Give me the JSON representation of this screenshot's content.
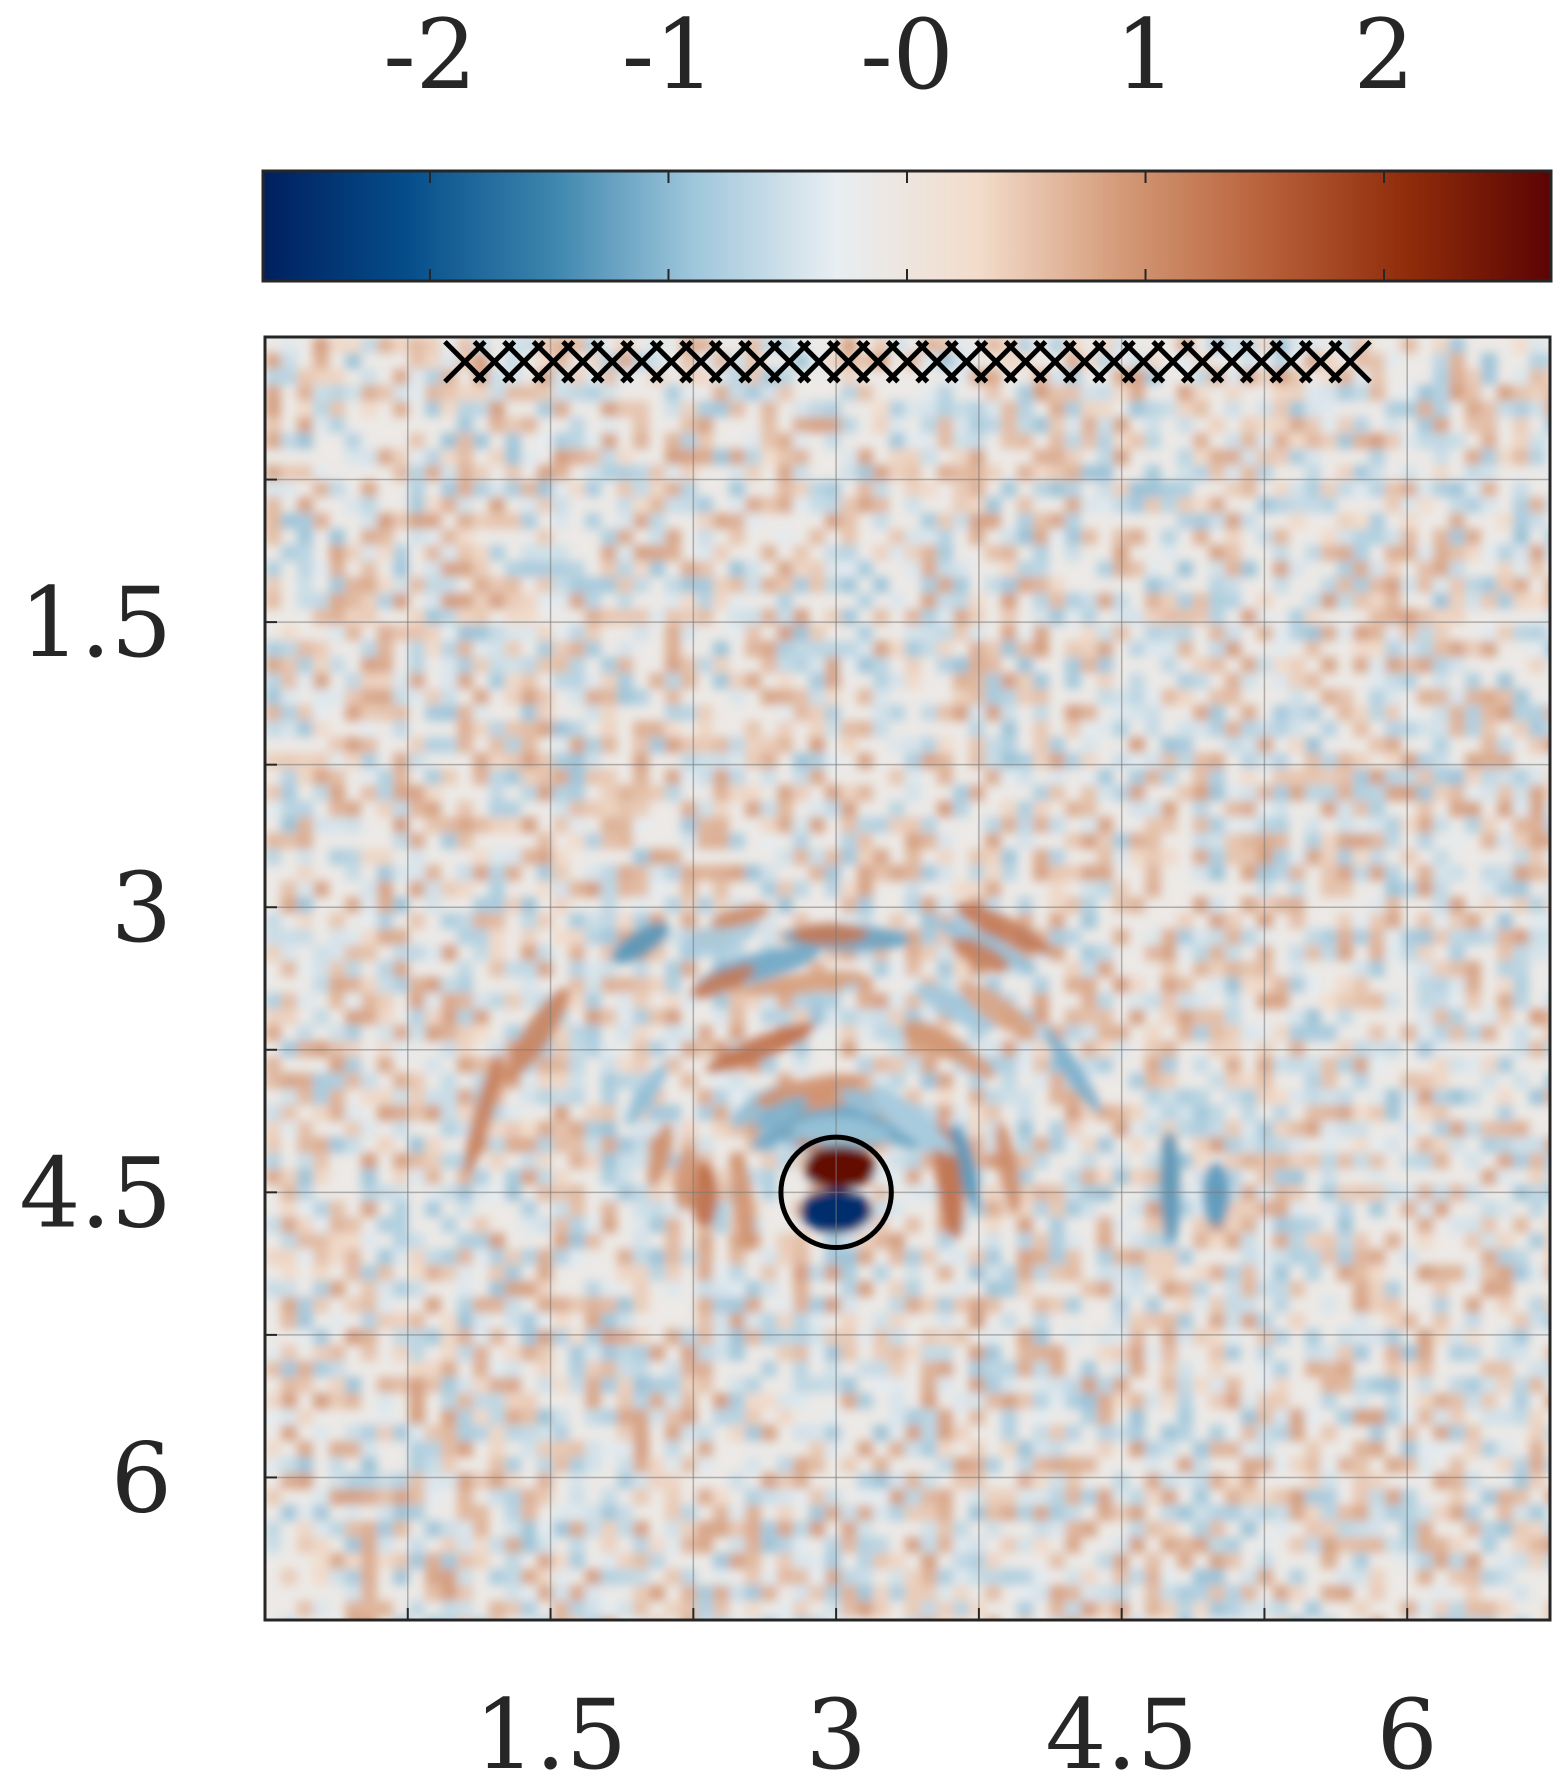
{
  "chart_data": {
    "type": "heatmap",
    "title": "",
    "xlabel": "",
    "ylabel": "",
    "xlim": [
      0,
      6.75
    ],
    "ylim": [
      0,
      6.75
    ],
    "y_reversed": true,
    "grid": true,
    "grid_step": 0.75,
    "x_tick_labels": [
      {
        "value": 1.5,
        "label": "1.5"
      },
      {
        "value": 3,
        "label": "3"
      },
      {
        "value": 4.5,
        "label": "4.5"
      },
      {
        "value": 6,
        "label": "6"
      }
    ],
    "y_tick_labels": [
      {
        "value": 1.5,
        "label": "1.5"
      },
      {
        "value": 3,
        "label": "3"
      },
      {
        "value": 4.5,
        "label": "4.5"
      },
      {
        "value": 6,
        "label": "6"
      }
    ],
    "colorbar": {
      "placement": "top",
      "range": [
        -2.7,
        2.7
      ],
      "ticks": [
        {
          "value": -2,
          "label": "-2"
        },
        {
          "value": -1,
          "label": "-1"
        },
        {
          "value": 0,
          "label": "-0"
        },
        {
          "value": 1,
          "label": "1"
        },
        {
          "value": 2,
          "label": "2"
        }
      ],
      "colors": [
        "#001f5e",
        "#054d8a",
        "#3a84ad",
        "#9ec6db",
        "#e8eef2",
        "#f3dccb",
        "#d49a78",
        "#b8613a",
        "#8f2c0a",
        "#5c0404"
      ]
    },
    "receivers": {
      "marker": "x",
      "y": 0.13,
      "x_start": 1.05,
      "x_end": 5.7,
      "count": 31
    },
    "target": {
      "shape": "circle",
      "center": [
        3.0,
        4.5
      ],
      "radius": 0.29
    },
    "features": [
      {
        "x": 3.02,
        "y": 4.37,
        "value": 2.6
      },
      {
        "x": 3.0,
        "y": 4.6,
        "value": -2.5
      }
    ]
  }
}
